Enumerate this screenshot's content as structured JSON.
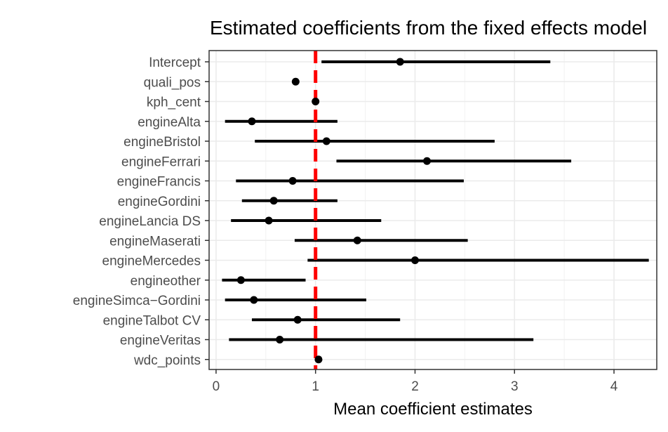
{
  "chart_data": {
    "type": "scatter",
    "title": "Estimated coefficients from the fixed effects model",
    "xlabel": "Mean coefficient estimates",
    "ylabel": "",
    "xlim": [
      -0.07,
      4.43
    ],
    "xticks": [
      0,
      1,
      2,
      3,
      4
    ],
    "grid": true,
    "reference_line": {
      "x": 1,
      "color": "#ff0000",
      "style": "dashed"
    },
    "point_color": "#000000",
    "categories": [
      "Intercept",
      "quali_pos",
      "kph_cent",
      "engineAlta",
      "engineBristol",
      "engineFerrari",
      "engineFrancis",
      "engineGordini",
      "engineLancia DS",
      "engineMaserati",
      "engineMercedes",
      "engineother",
      "engineSimca−Gordini",
      "engineTalbot CV",
      "engineVeritas",
      "wdc_points"
    ],
    "estimates": [
      1.85,
      0.8,
      1.0,
      0.36,
      1.11,
      2.12,
      0.77,
      0.58,
      0.53,
      1.42,
      2.0,
      0.25,
      0.38,
      0.82,
      0.64,
      1.03
    ],
    "lower": [
      1.06,
      0.79,
      0.99,
      0.09,
      0.39,
      1.21,
      0.2,
      0.26,
      0.15,
      0.79,
      0.92,
      0.06,
      0.09,
      0.36,
      0.13,
      1.02
    ],
    "upper": [
      3.36,
      0.81,
      1.01,
      1.22,
      2.8,
      3.57,
      2.49,
      1.22,
      1.66,
      2.53,
      4.35,
      0.9,
      1.51,
      1.85,
      3.19,
      1.04
    ]
  }
}
